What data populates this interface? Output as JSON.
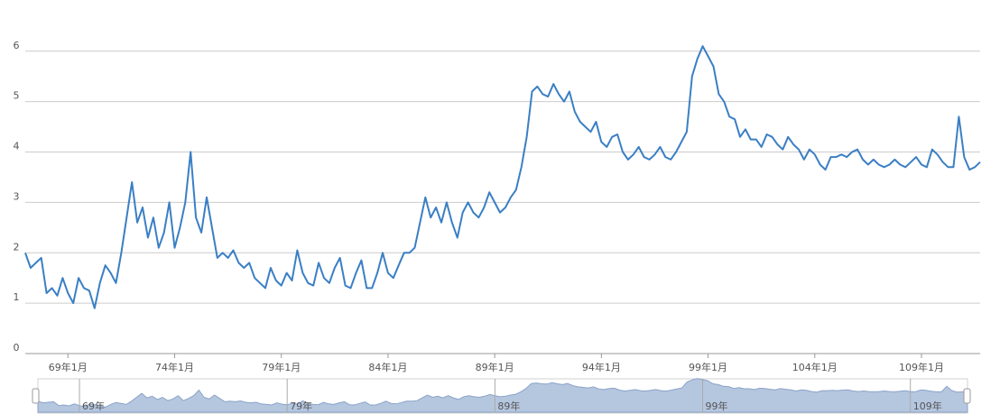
{
  "chart_data": {
    "type": "line",
    "categories": [
      null,
      null,
      null,
      null,
      null,
      null,
      null,
      null,
      "69年1月",
      null,
      null,
      null,
      null,
      null,
      null,
      null,
      null,
      null,
      null,
      null,
      null,
      null,
      null,
      null,
      null,
      null,
      null,
      null,
      "74年1月",
      null,
      null,
      null,
      null,
      null,
      null,
      null,
      null,
      null,
      null,
      null,
      null,
      null,
      null,
      null,
      null,
      null,
      null,
      null,
      "79年1月",
      null,
      null,
      null,
      null,
      null,
      null,
      null,
      null,
      null,
      null,
      null,
      null,
      null,
      null,
      null,
      null,
      null,
      null,
      null,
      "84年1月",
      null,
      null,
      null,
      null,
      null,
      null,
      null,
      null,
      null,
      null,
      null,
      null,
      null,
      null,
      null,
      null,
      null,
      null,
      null,
      "89年1月",
      null,
      null,
      null,
      null,
      null,
      null,
      null,
      null,
      null,
      null,
      null,
      null,
      null,
      null,
      null,
      null,
      null,
      null,
      null,
      "94年1月",
      null,
      null,
      null,
      null,
      null,
      null,
      null,
      null,
      null,
      null,
      null,
      null,
      null,
      null,
      null,
      null,
      null,
      null,
      null,
      "99年1月",
      null,
      null,
      null,
      null,
      null,
      null,
      null,
      null,
      null,
      null,
      null,
      null,
      null,
      null,
      null,
      null,
      null,
      null,
      null,
      "104年1月",
      null,
      null,
      null,
      null,
      null,
      null,
      null,
      null,
      null,
      null,
      null,
      null,
      null,
      null,
      null,
      null,
      null,
      null,
      null,
      "109年1月",
      null,
      null,
      null,
      null,
      null,
      null,
      null,
      null,
      null,
      null,
      null
    ],
    "series": [
      {
        "color": "#3a7fc4",
        "values": [
          2.0,
          1.7,
          1.8,
          1.9,
          1.2,
          1.3,
          1.15,
          1.5,
          1.2,
          1.0,
          1.5,
          1.3,
          1.25,
          0.9,
          1.4,
          1.75,
          1.6,
          1.4,
          2.0,
          2.7,
          3.4,
          2.6,
          2.9,
          2.3,
          2.7,
          2.1,
          2.4,
          3.0,
          2.1,
          2.5,
          3.0,
          4.0,
          2.7,
          2.4,
          3.1,
          2.5,
          1.9,
          2.0,
          1.9,
          2.05,
          1.8,
          1.7,
          1.8,
          1.5,
          1.4,
          1.3,
          1.7,
          1.45,
          1.35,
          1.6,
          1.45,
          2.05,
          1.6,
          1.4,
          1.35,
          1.8,
          1.5,
          1.4,
          1.7,
          1.9,
          1.35,
          1.3,
          1.6,
          1.85,
          1.3,
          1.3,
          1.6,
          2.0,
          1.6,
          1.5,
          1.75,
          2.0,
          2.0,
          2.1,
          2.6,
          3.1,
          2.7,
          2.9,
          2.6,
          3.0,
          2.6,
          2.3,
          2.8,
          3.0,
          2.8,
          2.7,
          2.9,
          3.2,
          3.0,
          2.8,
          2.9,
          3.1,
          3.25,
          3.7,
          4.3,
          5.2,
          5.3,
          5.15,
          5.1,
          5.35,
          5.15,
          5.0,
          5.2,
          4.8,
          4.6,
          4.5,
          4.4,
          4.6,
          4.2,
          4.1,
          4.3,
          4.35,
          4.0,
          3.85,
          3.95,
          4.1,
          3.9,
          3.85,
          3.95,
          4.1,
          3.9,
          3.85,
          4.0,
          4.2,
          4.4,
          5.5,
          5.85,
          6.1,
          5.9,
          5.7,
          5.15,
          5.0,
          4.7,
          4.65,
          4.3,
          4.45,
          4.25,
          4.25,
          4.1,
          4.35,
          4.3,
          4.15,
          4.05,
          4.3,
          4.15,
          4.05,
          3.85,
          4.05,
          3.95,
          3.75,
          3.65,
          3.9,
          3.9,
          3.95,
          3.9,
          4.0,
          4.05,
          3.85,
          3.75,
          3.85,
          3.75,
          3.7,
          3.75,
          3.85,
          3.75,
          3.7,
          3.8,
          3.9,
          3.75,
          3.7,
          4.05,
          3.95,
          3.8,
          3.7,
          3.7,
          4.7,
          3.9,
          3.65,
          3.7,
          3.8
        ]
      }
    ],
    "ylim": [
      0,
      6.05
    ],
    "yticks": [
      0,
      1,
      2,
      3,
      4,
      5,
      6
    ],
    "grid": true,
    "zoom_labels": [
      "69年",
      "79年",
      "89年",
      "99年",
      "109年"
    ]
  }
}
